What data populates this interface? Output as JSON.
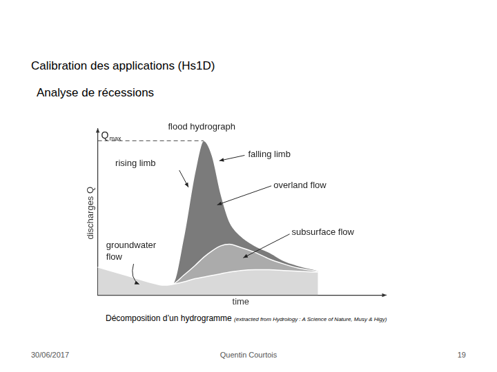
{
  "slide": {
    "title": "Calibration des applications (Hs1D)",
    "subtitle": "Analyse de récessions",
    "caption": "Décomposition d’un hydrogramme",
    "caption_source": "(extracted from Hydrology : A Science of Nature, Musy & Higy)",
    "footer": {
      "date": "30/06/2017",
      "author": "Quentin Courtois",
      "page": "19"
    }
  },
  "chart_data": {
    "type": "line",
    "stacked": true,
    "grid": false,
    "tick_labels": false,
    "x_label": "time",
    "y_label": "discharges Q",
    "xlim": [
      0,
      100
    ],
    "ylim": [
      0,
      100
    ],
    "x": [
      0,
      10,
      20,
      23,
      26,
      30,
      34,
      37,
      40,
      43,
      46,
      50,
      55,
      60,
      65,
      70,
      77
    ],
    "series": [
      {
        "color": "#d9d9d9",
        "values": [
          17,
          12,
          7,
          6,
          6.5,
          8,
          10,
          11,
          12,
          13,
          14,
          15,
          15.5,
          15.5,
          15,
          14.5,
          14
        ]
      },
      {
        "color": "#ababab",
        "values": [
          0,
          0,
          0,
          0,
          0,
          4,
          8,
          12,
          15,
          17,
          17,
          14,
          10.5,
          6.5,
          4,
          2,
          0.5
        ]
      },
      {
        "color": "#7b7b7b",
        "values": [
          0,
          0,
          0,
          0,
          0,
          23,
          57,
          71,
          58,
          32,
          14,
          7,
          4,
          4,
          2,
          1.5,
          0.5
        ]
      }
    ],
    "qmax": {
      "label": "Q",
      "subscript": "max",
      "value": 94
    },
    "annotations": [
      {
        "lines": [
          "flood hydrograph"
        ]
      },
      {
        "lines": [
          "rising limb"
        ]
      },
      {
        "lines": [
          "falling limb"
        ]
      },
      {
        "lines": [
          "overland flow"
        ]
      },
      {
        "lines": [
          "subsurface flow"
        ]
      },
      {
        "lines": [
          "groundwater",
          "flow"
        ]
      }
    ]
  }
}
